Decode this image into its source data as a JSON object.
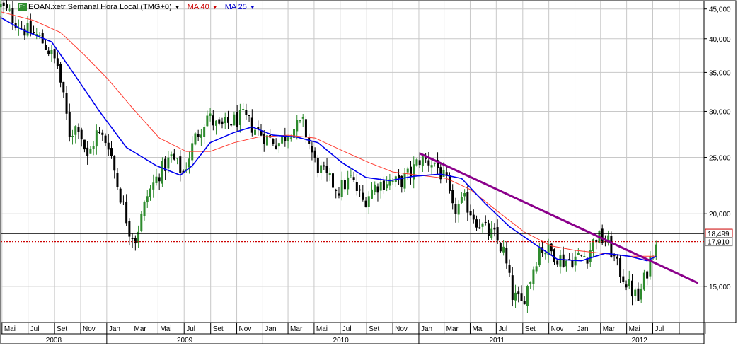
{
  "legend": {
    "badge": "Eq",
    "symbol_text": "EOAN.xetr Semanal Hora Local (TMG+0)",
    "ma40": "MA 40",
    "ma25": "MA 25",
    "caret": "▼"
  },
  "colors": {
    "candle_up": "#2e8b2e",
    "candle_down": "#000000",
    "ma40": "#ff3b30",
    "ma25": "#0000ee",
    "trendline": "#8b008b",
    "support_line": "#000000",
    "current_line": "#cc0000",
    "grid": "#c8c8c8"
  },
  "chart_data": {
    "type": "candlestick",
    "scale": "log",
    "ylim": [
      13000,
      46500
    ],
    "y_ticks": [
      {
        "value": 45000,
        "label": "45,000"
      },
      {
        "value": 40000,
        "label": "40,000"
      },
      {
        "value": 35000,
        "label": "35,000"
      },
      {
        "value": 30000,
        "label": "30,000"
      },
      {
        "value": 25000,
        "label": "25,000"
      },
      {
        "value": 20000,
        "label": "20,000"
      },
      {
        "value": 15000,
        "label": "15,000"
      }
    ],
    "x_range": [
      "2008-04-28",
      "2012-10-29"
    ],
    "month_ticks": [
      {
        "date": "2008-05-01",
        "label": "Mai"
      },
      {
        "date": "2008-07-01",
        "label": "Jul"
      },
      {
        "date": "2008-09-01",
        "label": "Set"
      },
      {
        "date": "2008-11-01",
        "label": "Nov"
      },
      {
        "date": "2009-01-01",
        "label": "Jan"
      },
      {
        "date": "2009-03-01",
        "label": "Mar"
      },
      {
        "date": "2009-05-01",
        "label": "Mai"
      },
      {
        "date": "2009-07-01",
        "label": "Jul"
      },
      {
        "date": "2009-09-01",
        "label": "Set"
      },
      {
        "date": "2009-11-01",
        "label": "Nov"
      },
      {
        "date": "2010-01-01",
        "label": "Jan"
      },
      {
        "date": "2010-03-01",
        "label": "Mar"
      },
      {
        "date": "2010-05-01",
        "label": "Mai"
      },
      {
        "date": "2010-07-01",
        "label": "Jul"
      },
      {
        "date": "2010-09-01",
        "label": "Set"
      },
      {
        "date": "2010-11-01",
        "label": "Nov"
      },
      {
        "date": "2011-01-01",
        "label": "Jan"
      },
      {
        "date": "2011-03-01",
        "label": "Mar"
      },
      {
        "date": "2011-05-01",
        "label": "Mai"
      },
      {
        "date": "2011-07-01",
        "label": "Jul"
      },
      {
        "date": "2011-09-01",
        "label": "Set"
      },
      {
        "date": "2011-11-01",
        "label": "Nov"
      },
      {
        "date": "2012-01-01",
        "label": "Jan"
      },
      {
        "date": "2012-03-01",
        "label": "Mar"
      },
      {
        "date": "2012-05-01",
        "label": "Mai"
      },
      {
        "date": "2012-07-01",
        "label": "Jul"
      },
      {
        "date": "2012-09-01",
        "label": ""
      },
      {
        "date": "2012-11-01",
        "label": ""
      }
    ],
    "years": [
      {
        "label": "2008",
        "start": "2008-04-28",
        "end": "2009-01-01"
      },
      {
        "label": "2009",
        "start": "2009-01-01",
        "end": "2010-01-01"
      },
      {
        "label": "2010",
        "start": "2010-01-01",
        "end": "2011-01-01"
      },
      {
        "label": "2011",
        "start": "2011-01-01",
        "end": "2012-01-01"
      },
      {
        "label": "2012",
        "start": "2012-01-01",
        "end": "2012-10-29"
      }
    ],
    "price_path": [
      [
        "2008-04-28",
        45500
      ],
      [
        "2008-05-26",
        43500
      ],
      [
        "2008-06-23",
        41500
      ],
      [
        "2008-07-21",
        40500
      ],
      [
        "2008-08-11",
        39000
      ],
      [
        "2008-09-08",
        36000
      ],
      [
        "2008-10-06",
        27500
      ],
      [
        "2008-10-27",
        28500
      ],
      [
        "2008-11-17",
        24800
      ],
      [
        "2008-12-08",
        27500
      ],
      [
        "2009-01-05",
        26500
      ],
      [
        "2009-01-26",
        22500
      ],
      [
        "2009-02-23",
        18800
      ],
      [
        "2009-03-09",
        18100
      ],
      [
        "2009-04-06",
        21500
      ],
      [
        "2009-05-04",
        23500
      ],
      [
        "2009-06-01",
        25000
      ],
      [
        "2009-06-29",
        23500
      ],
      [
        "2009-07-27",
        27000
      ],
      [
        "2009-08-24",
        29500
      ],
      [
        "2009-09-21",
        28000
      ],
      [
        "2009-10-19",
        28800
      ],
      [
        "2009-11-16",
        29300
      ],
      [
        "2009-12-14",
        28000
      ],
      [
        "2010-01-11",
        27000
      ],
      [
        "2010-02-08",
        26500
      ],
      [
        "2010-03-08",
        28000
      ],
      [
        "2010-04-05",
        28500
      ],
      [
        "2010-05-03",
        24500
      ],
      [
        "2010-05-31",
        23000
      ],
      [
        "2010-06-28",
        22000
      ],
      [
        "2010-07-26",
        23000
      ],
      [
        "2010-08-23",
        21000
      ],
      [
        "2010-09-20",
        22300
      ],
      [
        "2010-10-18",
        22800
      ],
      [
        "2010-11-15",
        22600
      ],
      [
        "2010-12-13",
        23500
      ],
      [
        "2011-01-03",
        24800
      ],
      [
        "2011-02-07",
        24500
      ],
      [
        "2011-03-07",
        22500
      ],
      [
        "2011-03-21",
        20200
      ],
      [
        "2011-04-18",
        21000
      ],
      [
        "2011-05-16",
        19500
      ],
      [
        "2011-06-13",
        18500
      ],
      [
        "2011-06-27",
        18300
      ],
      [
        "2011-07-18",
        17200
      ],
      [
        "2011-08-08",
        14500
      ],
      [
        "2011-08-29",
        14000
      ],
      [
        "2011-09-19",
        15500
      ],
      [
        "2011-10-10",
        17500
      ],
      [
        "2011-11-07",
        17200
      ],
      [
        "2011-12-05",
        16600
      ],
      [
        "2012-01-02",
        16800
      ],
      [
        "2012-01-30",
        17000
      ],
      [
        "2012-02-20",
        18300
      ],
      [
        "2012-03-19",
        17800
      ],
      [
        "2012-04-09",
        16200
      ],
      [
        "2012-05-07",
        15000
      ],
      [
        "2012-05-28",
        14200
      ],
      [
        "2012-06-18",
        16000
      ],
      [
        "2012-07-09",
        18200
      ]
    ],
    "ma25": {
      "name": "MA 25",
      "points": [
        [
          "2008-04-28",
          43500
        ],
        [
          "2008-06-16",
          41500
        ],
        [
          "2008-08-25",
          39500
        ],
        [
          "2008-10-20",
          34500
        ],
        [
          "2008-12-15",
          30000
        ],
        [
          "2009-02-16",
          26000
        ],
        [
          "2009-04-27",
          24200
        ],
        [
          "2009-06-22",
          23300
        ],
        [
          "2009-07-20",
          24200
        ],
        [
          "2009-08-31",
          26500
        ],
        [
          "2009-10-26",
          27600
        ],
        [
          "2009-12-07",
          28200
        ],
        [
          "2010-01-25",
          27300
        ],
        [
          "2010-03-22",
          27100
        ],
        [
          "2010-05-10",
          26500
        ],
        [
          "2010-07-05",
          24500
        ],
        [
          "2010-08-30",
          23100
        ],
        [
          "2010-10-25",
          22800
        ],
        [
          "2010-12-20",
          23200
        ],
        [
          "2011-02-21",
          23400
        ],
        [
          "2011-04-11",
          23000
        ],
        [
          "2011-06-06",
          20800
        ],
        [
          "2011-08-01",
          19000
        ],
        [
          "2011-09-26",
          17800
        ],
        [
          "2011-11-21",
          16700
        ],
        [
          "2012-01-16",
          16600
        ],
        [
          "2012-03-12",
          17100
        ],
        [
          "2012-05-07",
          16900
        ],
        [
          "2012-06-18",
          16600
        ],
        [
          "2012-07-09",
          16900
        ]
      ]
    },
    "ma40": {
      "name": "MA 40",
      "points": [
        [
          "2008-04-28",
          44500
        ],
        [
          "2008-07-14",
          43000
        ],
        [
          "2008-09-15",
          41000
        ],
        [
          "2008-11-10",
          37500
        ],
        [
          "2009-01-05",
          34000
        ],
        [
          "2009-03-09",
          30000
        ],
        [
          "2009-05-04",
          27000
        ],
        [
          "2009-07-06",
          25600
        ],
        [
          "2009-08-31",
          25600
        ],
        [
          "2009-10-26",
          26500
        ],
        [
          "2009-12-21",
          27100
        ],
        [
          "2010-03-01",
          27300
        ],
        [
          "2010-05-03",
          27000
        ],
        [
          "2010-07-05",
          25700
        ],
        [
          "2010-09-06",
          24500
        ],
        [
          "2010-11-01",
          23600
        ],
        [
          "2011-01-03",
          23300
        ],
        [
          "2011-03-07",
          23000
        ],
        [
          "2011-05-02",
          22000
        ],
        [
          "2011-07-04",
          20200
        ],
        [
          "2011-09-05",
          18600
        ],
        [
          "2011-11-07",
          17600
        ],
        [
          "2012-01-02",
          17300
        ],
        [
          "2012-03-05",
          17100
        ],
        [
          "2012-05-07",
          16900
        ],
        [
          "2012-07-09",
          16900
        ]
      ]
    },
    "trendline": {
      "start": [
        "2011-01-03",
        25400
      ],
      "end": [
        "2012-10-15",
        15200
      ]
    },
    "support_line": 18499,
    "current_line": 17910,
    "price_labels": [
      {
        "value": 18499,
        "label": "18,499"
      },
      {
        "value": 17910,
        "label": "17,910"
      }
    ]
  }
}
